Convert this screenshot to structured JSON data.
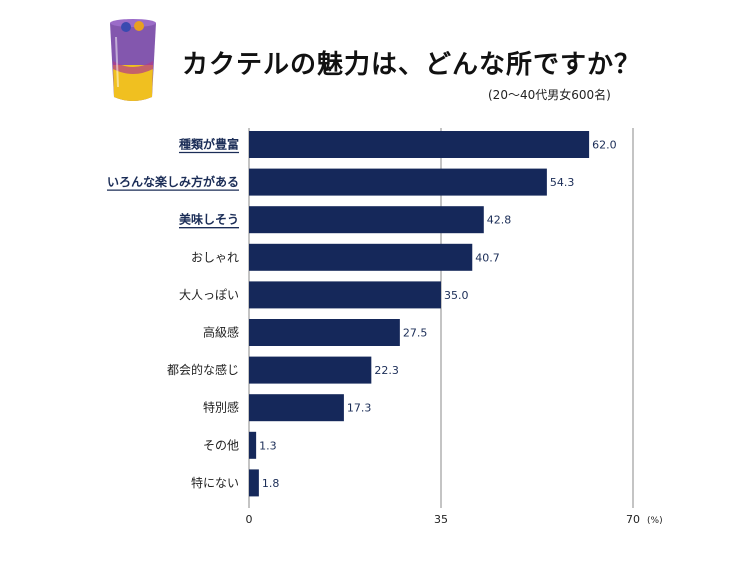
{
  "title": "カクテルの魅力は、どんな所ですか？",
  "subtitle": "(20〜40代男女600名)",
  "illustration": "cocktail-glass-icon",
  "chart_data": {
    "type": "bar",
    "orientation": "horizontal",
    "title": "カクテルの魅力は、どんな所ですか？",
    "subtitle": "(20〜40代男女600名)",
    "categories": [
      "種類が豊富",
      "いろんな楽しみ方がある",
      "美味しそう",
      "おしゃれ",
      "大人っぽい",
      "高級感",
      "都会的な感じ",
      "特別感",
      "その他",
      "特にない"
    ],
    "emphasized": [
      true,
      true,
      true,
      false,
      false,
      false,
      false,
      false,
      false,
      false
    ],
    "values": [
      62.0,
      54.3,
      42.8,
      40.7,
      35.0,
      27.5,
      22.3,
      17.3,
      1.3,
      1.8
    ],
    "value_labels": [
      "62.0",
      "54.3",
      "42.8",
      "40.7",
      "35.0",
      "27.5",
      "22.3",
      "17.3",
      "1.3",
      "1.8"
    ],
    "xlim": [
      0,
      70
    ],
    "xticks": [
      "0",
      "35",
      "70"
    ],
    "xunit": "(%)",
    "bar_color": "#15285a",
    "emphasis_color": "#1b2d57",
    "grid": "vertical-lines-at-ticks"
  }
}
